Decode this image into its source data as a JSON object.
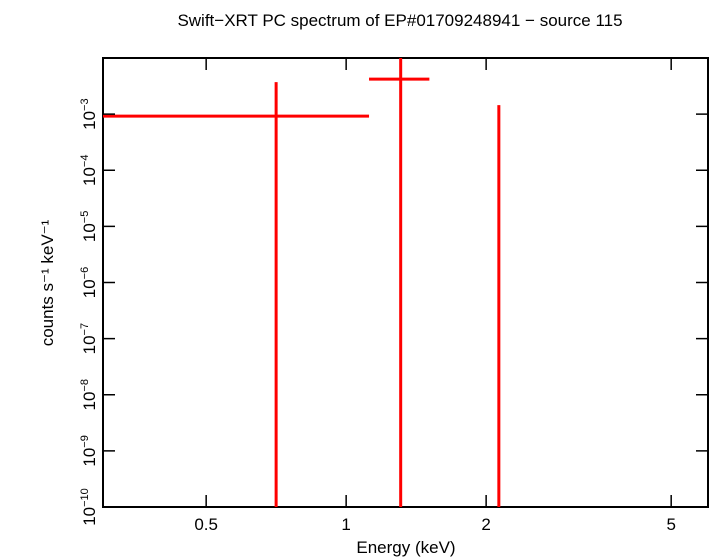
{
  "chart_data": {
    "type": "errorbar",
    "title": "Swift−XRT PC spectrum of EP#01709248941 − source 115",
    "x_label": "Energy (keV)",
    "y_label": "counts s⁻¹ keV⁻¹",
    "x": [
      0.707,
      1.31,
      2.13
    ],
    "values": [
      0.00092,
      0.0042,
      0.0007
    ],
    "xerr_minus": [
      0.407,
      0.19,
      0
    ],
    "xerr_plus": [
      0.413,
      0.2,
      0
    ],
    "yerr_minus": [
      0.00092,
      0.0042,
      0.0007
    ],
    "yerr_plus": [
      0.0028,
      0.006,
      0.00075
    ],
    "color": "#ff0000",
    "x_log": true,
    "y_log": true,
    "xlim": [
      0.3,
      6
    ],
    "ylim": [
      1e-10,
      0.01
    ],
    "xticks": [
      0.5,
      1,
      2,
      5
    ],
    "yticks": [
      {
        "value": 1e-10,
        "label": "10",
        "exponent": "−10"
      },
      {
        "value": 1e-09,
        "label": "10",
        "exponent": "−9"
      },
      {
        "value": 1e-08,
        "label": "10",
        "exponent": "−8"
      },
      {
        "value": 1e-07,
        "label": "10",
        "exponent": "−7"
      },
      {
        "value": 1e-06,
        "label": "10",
        "exponent": "−6"
      },
      {
        "value": 1e-05,
        "label": "10",
        "exponent": "−5"
      },
      {
        "value": 0.0001,
        "label": "10",
        "exponent": "−4"
      },
      {
        "value": 0.001,
        "label": "10",
        "exponent": "−3"
      }
    ]
  }
}
